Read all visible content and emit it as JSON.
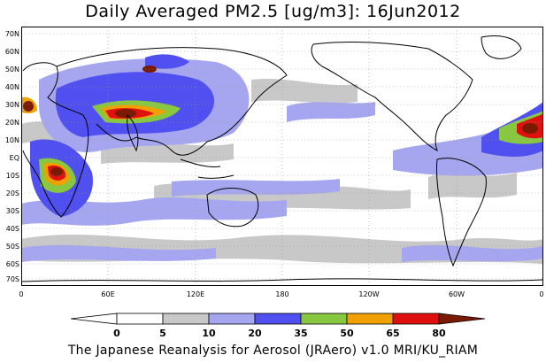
{
  "title": "Daily Averaged PM2.5 [ug/m3]: 16Jun2012",
  "footer": "The Japanese Reanalysis for Aerosol (JRAero) v1.0 MRI/KU_RIAM",
  "lat_labels": [
    "70N",
    "60N",
    "50N",
    "40N",
    "30N",
    "20N",
    "10N",
    "EQ",
    "10S",
    "20S",
    "30S",
    "40S",
    "50S",
    "60S",
    "70S"
  ],
  "lon_labels": [
    "0",
    "60E",
    "120E",
    "180",
    "120W",
    "60W",
    "0"
  ],
  "colorbar": {
    "labels": [
      "0",
      "5",
      "10",
      "20",
      "35",
      "50",
      "65",
      "80"
    ],
    "colors": [
      "#ffffff",
      "#c8c8c8",
      "#a6a6f0",
      "#5050f0",
      "#88c840",
      "#f0a000",
      "#e01010",
      "#7a1a00"
    ]
  }
}
